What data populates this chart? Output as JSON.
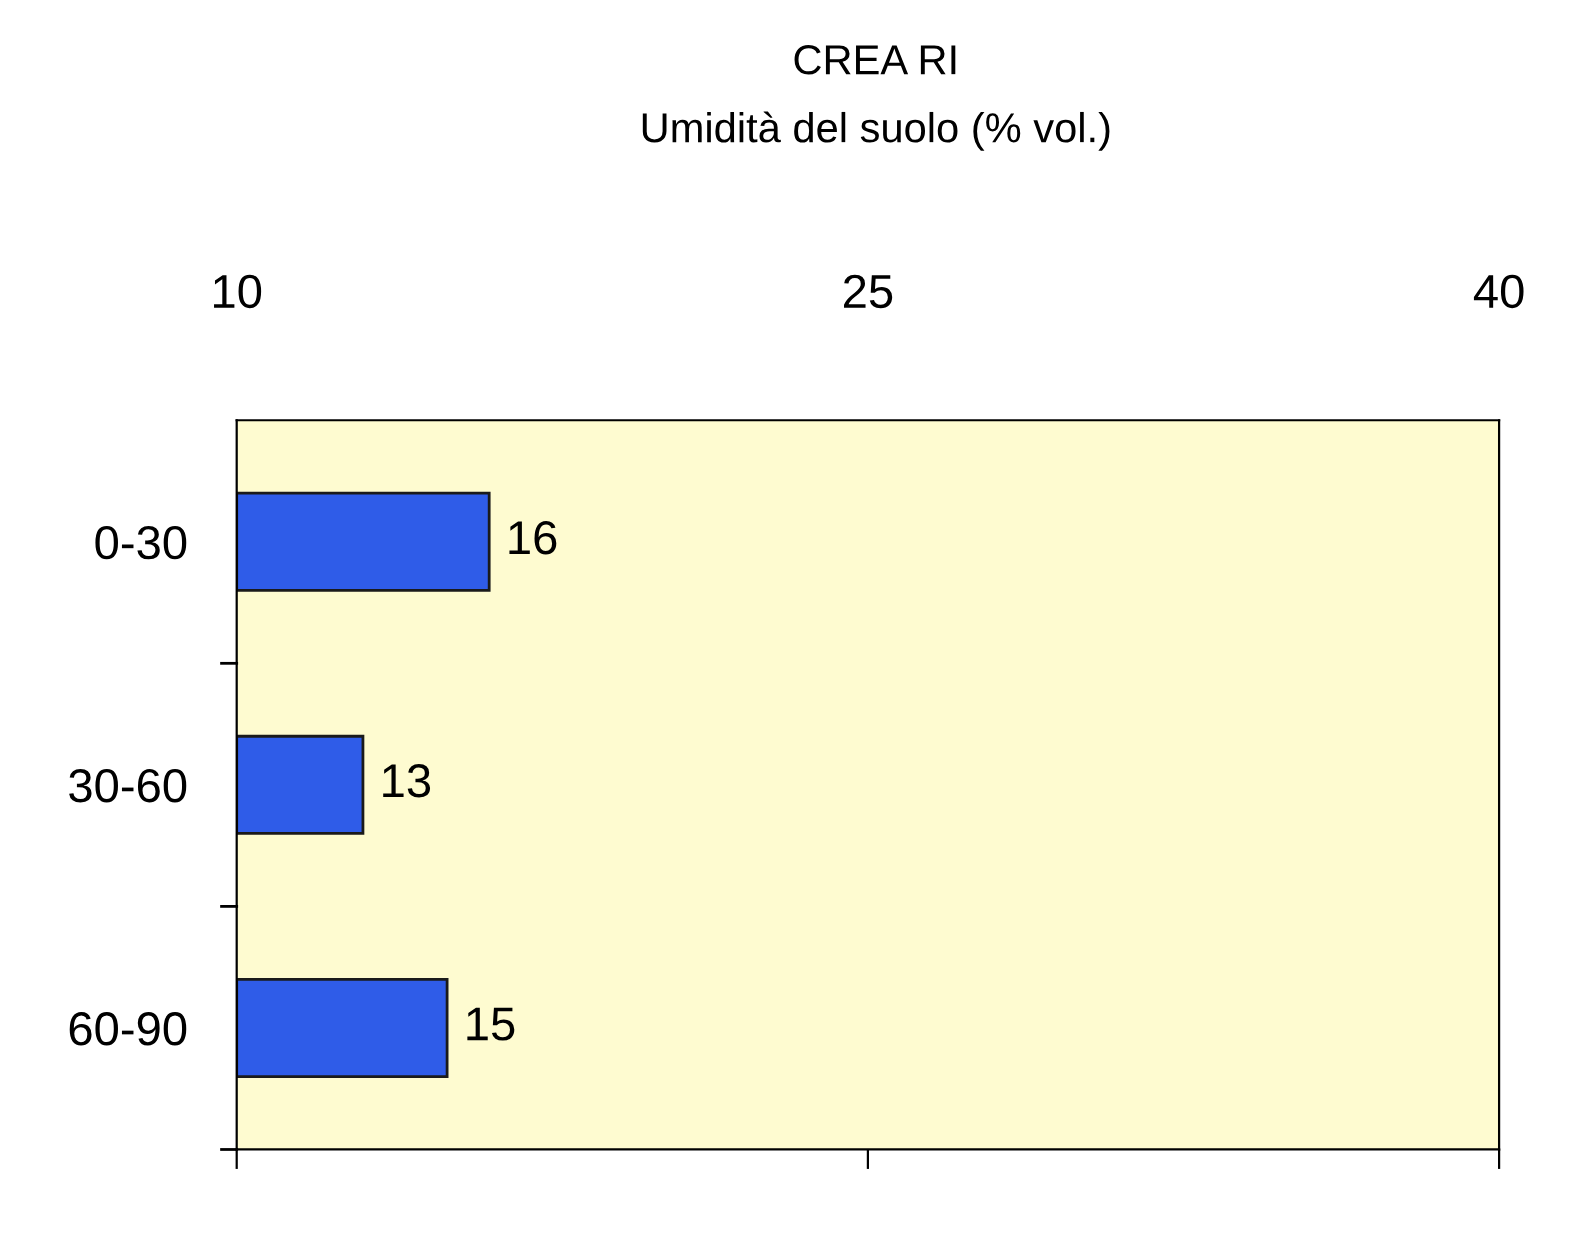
{
  "chart_data": {
    "type": "bar",
    "orientation": "horizontal",
    "title": "CREA RI",
    "subtitle": "Umidità del suolo (% vol.)",
    "categories": [
      "0-30",
      "30-60",
      "60-90"
    ],
    "values": [
      16,
      13,
      15
    ],
    "color": "#2f5ce8",
    "xlim": [
      10,
      40
    ],
    "xticks": [
      10,
      25,
      40
    ],
    "data_labels": true,
    "grid": false,
    "legend": false
  }
}
